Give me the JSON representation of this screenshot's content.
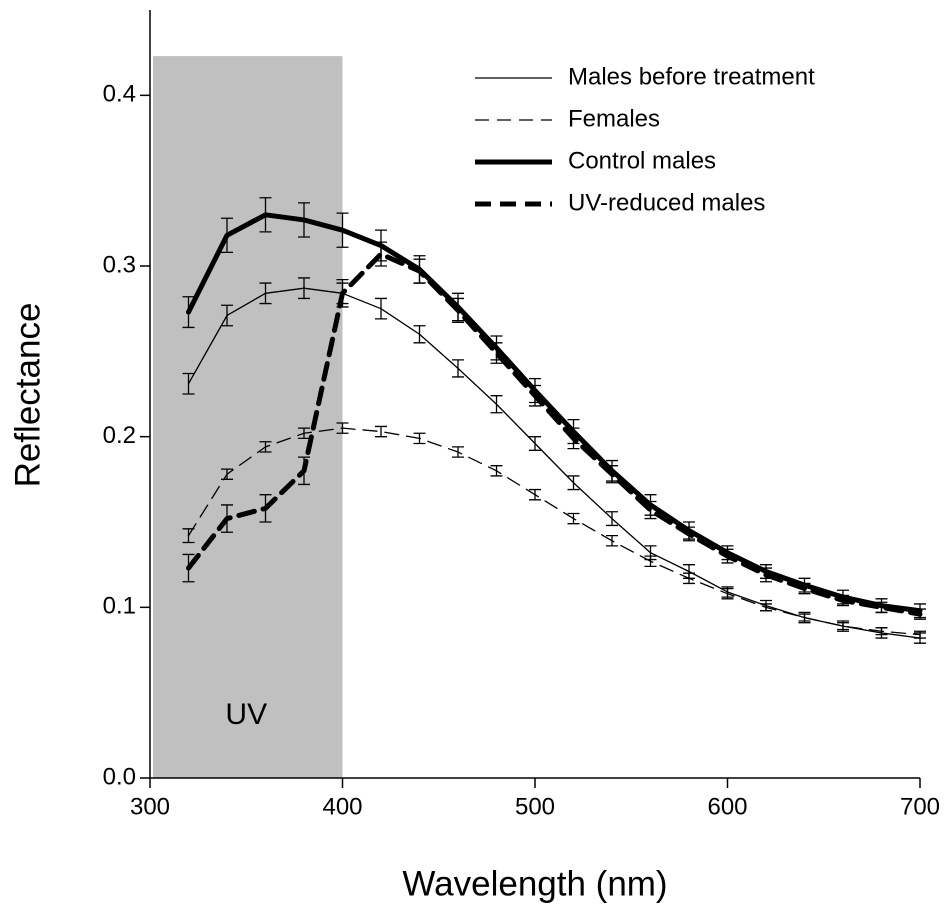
{
  "chart_data": {
    "type": "line",
    "xlabel": "Wavelength (nm)",
    "ylabel": "Reflectance",
    "xlim": [
      300,
      700
    ],
    "ylim": [
      0,
      0.45
    ],
    "xticks": [
      300,
      400,
      500,
      600,
      700
    ],
    "yticks": [
      {
        "value": 0,
        "label": "0.0"
      },
      0.1,
      0.2,
      0.3,
      0.4
    ],
    "legend": "upper-right",
    "shade": {
      "xlim": [
        300,
        400
      ],
      "top": 0.423,
      "color": "#c0c0c0",
      "label": "UV"
    },
    "x": [
      320,
      340,
      360,
      380,
      400,
      420,
      440,
      460,
      480,
      500,
      520,
      540,
      560,
      580,
      600,
      620,
      640,
      660,
      680,
      700
    ],
    "series": [
      {
        "name": "Males before treatment",
        "color": "#000000",
        "width": 1.3,
        "dashed": false,
        "values": [
          0.231,
          0.271,
          0.284,
          0.287,
          0.284,
          0.275,
          0.26,
          0.24,
          0.219,
          0.196,
          0.173,
          0.152,
          0.132,
          0.121,
          0.109,
          0.101,
          0.094,
          0.089,
          0.085,
          0.082
        ],
        "errors": [
          0.006,
          0.006,
          0.006,
          0.006,
          0.006,
          0.006,
          0.005,
          0.005,
          0.005,
          0.004,
          0.004,
          0.004,
          0.004,
          0.004,
          0.003,
          0.003,
          0.003,
          0.003,
          0.003,
          0.003
        ]
      },
      {
        "name": "Females",
        "color": "#000000",
        "width": 1.3,
        "dashed": true,
        "values": [
          0.142,
          0.178,
          0.194,
          0.202,
          0.205,
          0.203,
          0.199,
          0.191,
          0.18,
          0.166,
          0.152,
          0.139,
          0.127,
          0.117,
          0.108,
          0.1,
          0.094,
          0.089,
          0.086,
          0.084
        ],
        "errors": [
          0.004,
          0.003,
          0.003,
          0.003,
          0.003,
          0.003,
          0.003,
          0.003,
          0.003,
          0.003,
          0.003,
          0.003,
          0.003,
          0.003,
          0.003,
          0.002,
          0.002,
          0.002,
          0.002,
          0.002
        ]
      },
      {
        "name": "Control males",
        "color": "#000000",
        "width": 5,
        "dashed": false,
        "values": [
          0.273,
          0.318,
          0.33,
          0.327,
          0.321,
          0.312,
          0.298,
          0.276,
          0.252,
          0.227,
          0.203,
          0.18,
          0.16,
          0.145,
          0.132,
          0.121,
          0.113,
          0.106,
          0.101,
          0.098
        ],
        "errors": [
          0.009,
          0.01,
          0.01,
          0.01,
          0.01,
          0.009,
          0.008,
          0.008,
          0.007,
          0.007,
          0.007,
          0.006,
          0.006,
          0.005,
          0.004,
          0.004,
          0.004,
          0.004,
          0.004,
          0.004
        ]
      },
      {
        "name": "UV-reduced males",
        "color": "#000000",
        "width": 5,
        "dashed": true,
        "values": [
          0.123,
          0.152,
          0.158,
          0.18,
          0.284,
          0.307,
          0.297,
          0.274,
          0.249,
          0.224,
          0.199,
          0.178,
          0.157,
          0.143,
          0.13,
          0.119,
          0.111,
          0.104,
          0.1,
          0.096
        ],
        "errors": [
          0.008,
          0.008,
          0.008,
          0.008,
          0.008,
          0.007,
          0.007,
          0.007,
          0.006,
          0.006,
          0.006,
          0.005,
          0.005,
          0.004,
          0.004,
          0.004,
          0.003,
          0.003,
          0.003,
          0.003
        ]
      }
    ]
  }
}
